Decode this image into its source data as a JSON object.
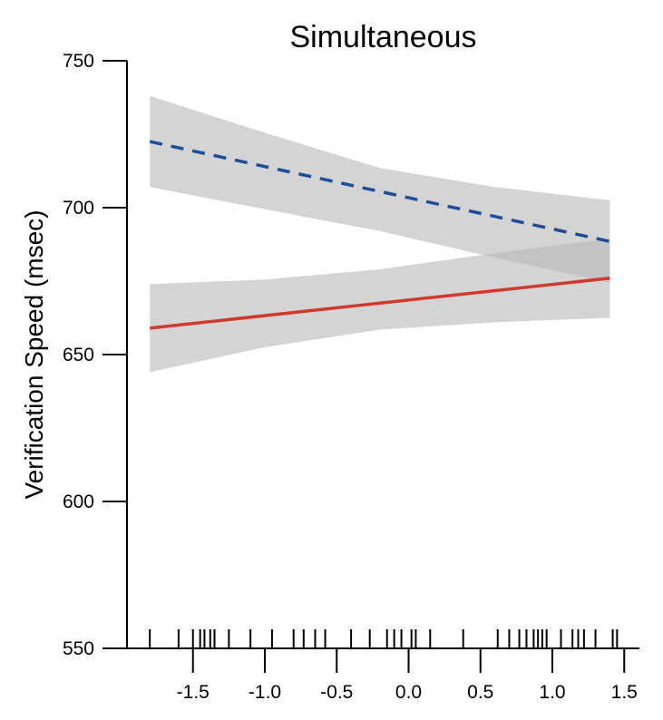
{
  "chart_data": {
    "type": "line",
    "title": "Simultaneous",
    "xlabel": "",
    "ylabel": "Verification Speed (msec)",
    "xlim": [
      -1.9,
      1.6
    ],
    "ylim": [
      550,
      750
    ],
    "xticks": [
      -1.5,
      -1.0,
      -0.5,
      0.0,
      0.5,
      1.0,
      1.5
    ],
    "xtick_labels": [
      "-1.5",
      "-1.0",
      "-0.5",
      "0.0",
      "0.5",
      "1.0",
      "1.5"
    ],
    "yticks": [
      550,
      600,
      650,
      700,
      750
    ],
    "ytick_labels": [
      "550",
      "600",
      "650",
      "700",
      "750"
    ],
    "grid": false,
    "legend": "none",
    "series": [
      {
        "style": "dashed",
        "color": "#1f4e99",
        "x": [
          -1.8,
          1.4
        ],
        "y": [
          722.5,
          688.5
        ],
        "ci_x": [
          -1.8,
          -1.0,
          -0.2,
          0.6,
          1.4
        ],
        "ci_lower": [
          707.0,
          699.5,
          692.0,
          683.0,
          674.5
        ],
        "ci_upper": [
          738.0,
          725.5,
          713.5,
          707.0,
          702.5
        ]
      },
      {
        "style": "solid",
        "color": "#d03a2e",
        "x": [
          -1.8,
          1.4
        ],
        "y": [
          659.0,
          676.0
        ],
        "ci_x": [
          -1.8,
          -1.0,
          -0.2,
          0.6,
          1.4
        ],
        "ci_lower": [
          644.0,
          652.5,
          658.5,
          661.0,
          662.5
        ],
        "ci_upper": [
          674.0,
          675.5,
          679.0,
          684.5,
          689.5
        ]
      }
    ],
    "ci_color": "#b8b8b8",
    "rug_x": [
      -1.8,
      -1.6,
      -1.5,
      -1.45,
      -1.42,
      -1.38,
      -1.35,
      -1.25,
      -1.1,
      -0.95,
      -0.8,
      -0.73,
      -0.65,
      -0.58,
      -0.4,
      -0.27,
      -0.15,
      -0.1,
      -0.05,
      0.02,
      0.05,
      0.15,
      0.38,
      0.62,
      0.7,
      0.77,
      0.82,
      0.87,
      0.9,
      0.93,
      0.96,
      1.06,
      1.14,
      1.18,
      1.22,
      1.3,
      1.42,
      1.45
    ]
  }
}
